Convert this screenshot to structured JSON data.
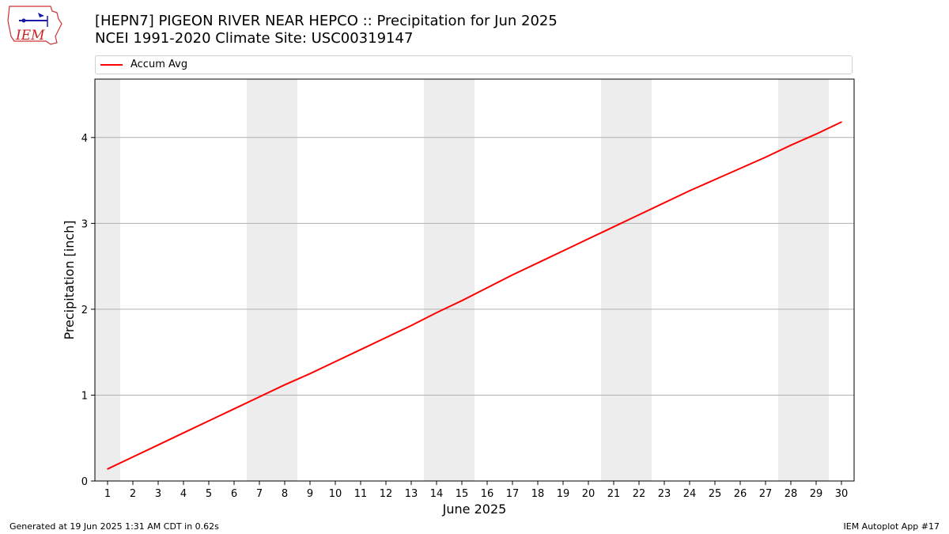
{
  "header": {
    "title_line1": "[HEPN7] PIGEON RIVER NEAR HEPCO :: Precipitation for Jun 2025",
    "title_line2": "NCEI 1991-2020 Climate Site: USC00319147",
    "logo_text": "IEM"
  },
  "footer": {
    "generated": "Generated at 19 Jun 2025 1:31 AM CDT in 0.62s",
    "app": "IEM Autoplot App #17"
  },
  "colors": {
    "series": "#ff0000",
    "weekend_shade": "#ededed",
    "grid": "#b0b0b0"
  },
  "chart_data": {
    "type": "line",
    "xlabel": "June 2025",
    "ylabel": "Precipitation [inch]",
    "xlim": [
      0.5,
      30.5
    ],
    "ylim": [
      0,
      4.68
    ],
    "yticks": [
      0,
      1,
      2,
      3,
      4
    ],
    "grid": "horizontal",
    "legend_position": "top",
    "shaded_weekends": [
      [
        0.5,
        1.5
      ],
      [
        6.5,
        8.5
      ],
      [
        13.5,
        15.5
      ],
      [
        20.5,
        22.5
      ],
      [
        27.5,
        29.5
      ]
    ],
    "x": [
      1,
      2,
      3,
      4,
      5,
      6,
      7,
      8,
      9,
      10,
      11,
      12,
      13,
      14,
      15,
      16,
      17,
      18,
      19,
      20,
      21,
      22,
      23,
      24,
      25,
      26,
      27,
      28,
      29,
      30
    ],
    "series": [
      {
        "name": "Accum Avg",
        "color": "#ff0000",
        "values": [
          0.14,
          0.28,
          0.42,
          0.56,
          0.7,
          0.84,
          0.98,
          1.12,
          1.25,
          1.39,
          1.53,
          1.67,
          1.81,
          1.96,
          2.1,
          2.25,
          2.4,
          2.54,
          2.68,
          2.82,
          2.96,
          3.1,
          3.24,
          3.38,
          3.51,
          3.64,
          3.77,
          3.91,
          4.04,
          4.18
        ]
      }
    ]
  }
}
